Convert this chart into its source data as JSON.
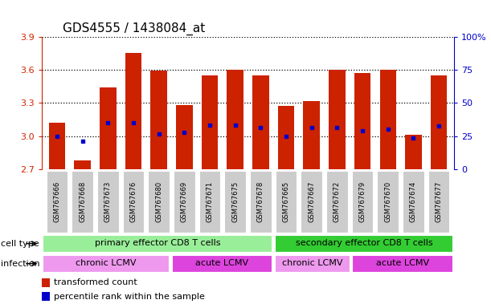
{
  "title": "GDS4555 / 1438084_at",
  "samples": [
    "GSM767666",
    "GSM767668",
    "GSM767673",
    "GSM767676",
    "GSM767680",
    "GSM767669",
    "GSM767671",
    "GSM767675",
    "GSM767678",
    "GSM767665",
    "GSM767667",
    "GSM767672",
    "GSM767679",
    "GSM767670",
    "GSM767674",
    "GSM767677"
  ],
  "bar_values": [
    3.12,
    2.78,
    3.44,
    3.75,
    3.59,
    3.28,
    3.55,
    3.6,
    3.55,
    3.27,
    3.32,
    3.6,
    3.57,
    3.6,
    3.01,
    3.55
  ],
  "percentile_values": [
    3.0,
    2.95,
    3.12,
    3.12,
    3.02,
    3.03,
    3.1,
    3.1,
    3.08,
    3.0,
    3.08,
    3.08,
    3.05,
    3.06,
    2.98,
    3.09
  ],
  "ylim_low": 2.7,
  "ylim_high": 3.9,
  "yticks": [
    2.7,
    3.0,
    3.3,
    3.6,
    3.9
  ],
  "right_yticks_vals": [
    0,
    25,
    50,
    75,
    100
  ],
  "right_ytick_labels": [
    "0",
    "25",
    "50",
    "75",
    "100%"
  ],
  "bar_color": "#cc2200",
  "dot_color": "#0000cc",
  "bg_color": "#ffffff",
  "cell_type_groups": [
    {
      "label": "primary effector CD8 T cells",
      "start": 0,
      "end": 9,
      "color": "#99ee99"
    },
    {
      "label": "secondary effector CD8 T cells",
      "start": 9,
      "end": 16,
      "color": "#33cc33"
    }
  ],
  "infection_groups": [
    {
      "label": "chronic LCMV",
      "start": 0,
      "end": 5,
      "color": "#ee99ee"
    },
    {
      "label": "acute LCMV",
      "start": 5,
      "end": 9,
      "color": "#dd44dd"
    },
    {
      "label": "chronic LCMV",
      "start": 9,
      "end": 12,
      "color": "#ee99ee"
    },
    {
      "label": "acute LCMV",
      "start": 12,
      "end": 16,
      "color": "#dd44dd"
    }
  ],
  "legend_red_label": "transformed count",
  "legend_blue_label": "percentile rank within the sample",
  "row_label_cell_type": "cell type",
  "row_label_infection": "infection",
  "left_axis_color": "#cc2200",
  "right_axis_color": "#0000cc",
  "xticklabel_bg_color": "#cccccc",
  "title_fontsize": 11,
  "axis_fontsize": 8,
  "annotation_fontsize": 8,
  "legend_fontsize": 8
}
